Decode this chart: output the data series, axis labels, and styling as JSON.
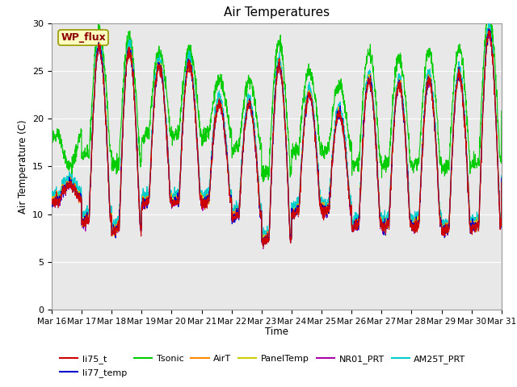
{
  "title": "Air Temperatures",
  "ylabel": "Air Temperature (C)",
  "xlabel": "Time",
  "ylim": [
    0,
    30
  ],
  "yticks": [
    0,
    5,
    10,
    15,
    20,
    25,
    30
  ],
  "xtick_labels": [
    "Mar 16",
    "Mar 17",
    "Mar 18",
    "Mar 19",
    "Mar 20",
    "Mar 21",
    "Mar 22",
    "Mar 23",
    "Mar 24",
    "Mar 25",
    "Mar 26",
    "Mar 27",
    "Mar 28",
    "Mar 29",
    "Mar 30",
    "Mar 31"
  ],
  "annotation": "WP_flux",
  "series_colors": {
    "li75_t": "#CC0000",
    "li77_temp": "#0000CC",
    "Tsonic": "#00CC00",
    "AirT": "#FF8800",
    "PanelTemp": "#CCCC00",
    "NR01_PRT": "#AA00AA",
    "AM25T_PRT": "#00CCCC"
  },
  "background_color": "#E8E8E8",
  "fig_background": "#FFFFFF",
  "linewidth": 0.8,
  "day_peaks": [
    13.0,
    27.5,
    27.0,
    25.5,
    25.7,
    21.5,
    21.5,
    25.5,
    22.5,
    20.5,
    24.0,
    23.5,
    24.0,
    24.5,
    29.0,
    21.0
  ],
  "day_nights": [
    11.5,
    9.5,
    8.5,
    11.5,
    11.5,
    11.5,
    10.0,
    7.5,
    10.5,
    10.5,
    9.0,
    9.0,
    9.0,
    8.5,
    9.0,
    14.0
  ],
  "tsonic_extra_peaks": [
    2.0,
    1.5,
    1.5,
    1.5,
    1.5,
    2.5,
    2.5,
    2.5,
    2.5,
    3.0,
    3.0,
    3.0,
    3.0,
    3.0,
    2.0,
    2.0
  ],
  "tsonic_extra_nights": [
    7.0,
    7.0,
    7.0,
    7.0,
    7.0,
    7.0,
    7.0,
    7.0,
    6.5,
    6.5,
    6.5,
    6.5,
    6.5,
    6.5,
    6.5,
    6.5
  ]
}
